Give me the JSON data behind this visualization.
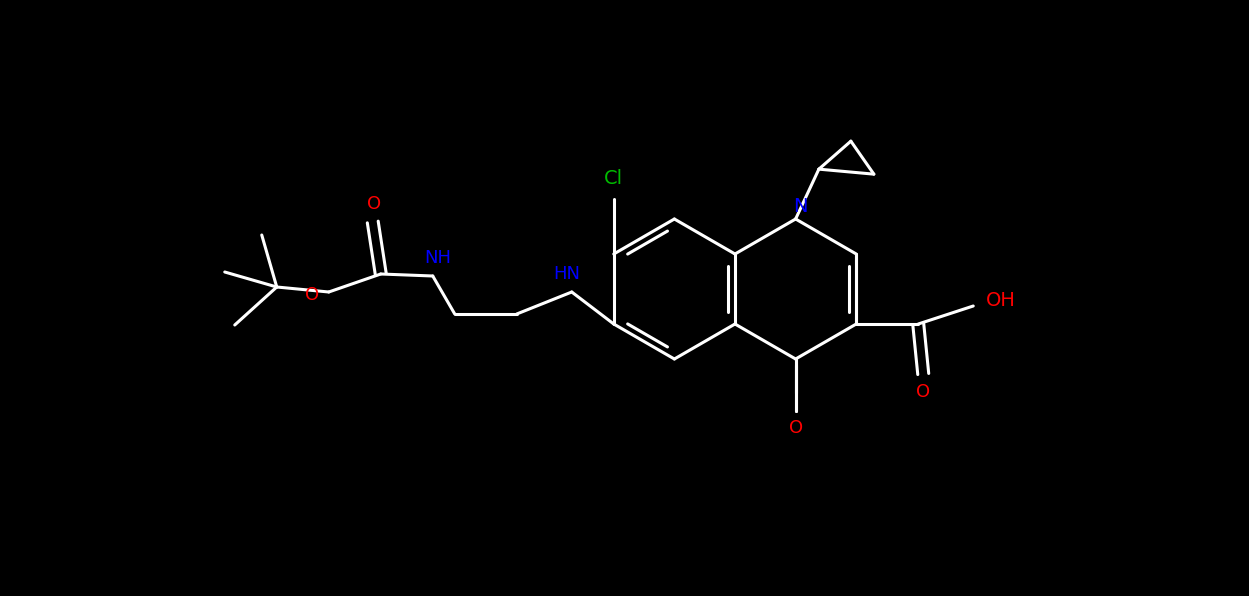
{
  "background_color": "#000000",
  "bond_width": 2.2,
  "fig_width": 12.49,
  "fig_height": 5.96,
  "colors": {
    "bond": "#ffffff",
    "Cl": "#00bb00",
    "N": "#0000ff",
    "O": "#ff0000",
    "OH": "#ff0000"
  }
}
